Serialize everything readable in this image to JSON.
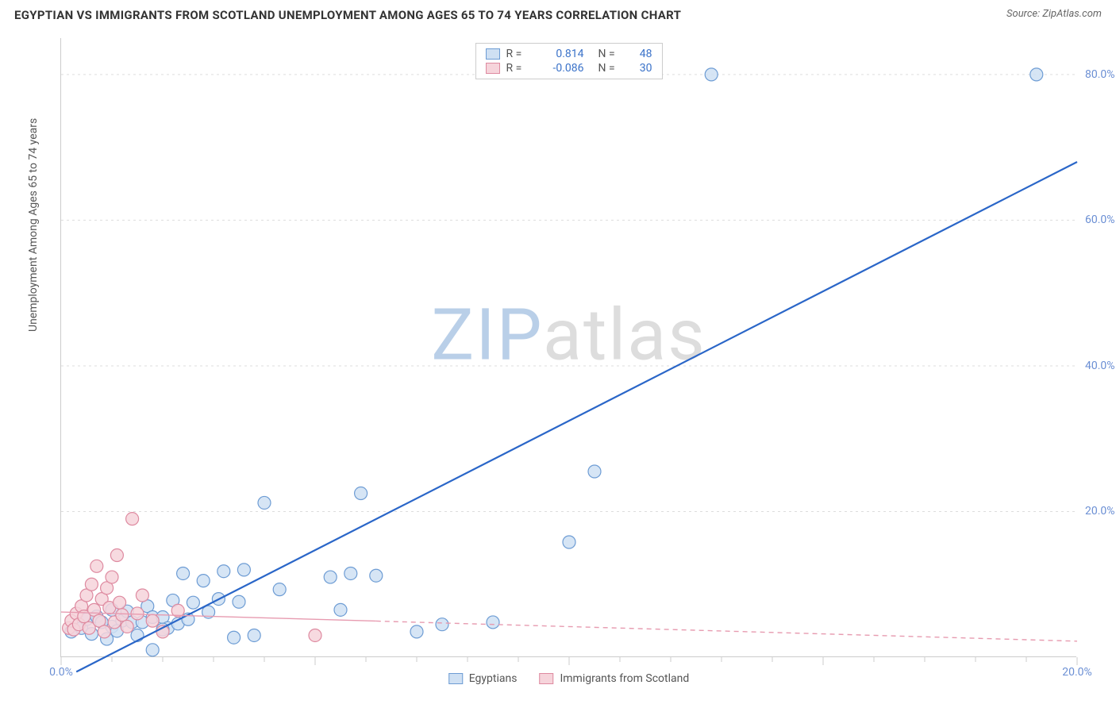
{
  "title": "EGYPTIAN VS IMMIGRANTS FROM SCOTLAND UNEMPLOYMENT AMONG AGES 65 TO 74 YEARS CORRELATION CHART",
  "source": "Source: ZipAtlas.com",
  "watermark_a": "ZIP",
  "watermark_b": "atlas",
  "y_axis_label": "Unemployment Among Ages 65 to 74 years",
  "chart": {
    "type": "scatter",
    "background_color": "#ffffff",
    "grid_color": "#dddddd",
    "axis_color": "#cccccc",
    "xlim": [
      0,
      20
    ],
    "ylim": [
      0,
      85
    ],
    "x_ticks": [
      0,
      5,
      10,
      15,
      20
    ],
    "x_tick_labels": [
      "0.0%",
      "",
      "",
      "",
      "20.0%"
    ],
    "y_ticks": [
      20,
      40,
      60,
      80
    ],
    "y_tick_labels": [
      "20.0%",
      "40.0%",
      "60.0%",
      "80.0%"
    ],
    "x_minor_step": 1,
    "marker_radius": 8,
    "marker_stroke_width": 1.2,
    "series": [
      {
        "name": "Egyptians",
        "color_fill": "#cfe0f3",
        "color_stroke": "#6d9cd4",
        "r_value": "0.814",
        "n_value": "48",
        "trend": {
          "x1": 0.3,
          "y1": -2,
          "x2": 20,
          "y2": 68,
          "dash": "0",
          "width": 2.2,
          "color": "#2a66c8"
        },
        "points": [
          [
            0.2,
            3.5
          ],
          [
            0.4,
            4
          ],
          [
            0.5,
            5.2
          ],
          [
            0.6,
            3.2
          ],
          [
            0.7,
            5.6
          ],
          [
            0.9,
            2.5
          ],
          [
            1.0,
            6.5
          ],
          [
            1.0,
            4.2
          ],
          [
            1.2,
            5.0
          ],
          [
            1.3,
            6.3
          ],
          [
            1.4,
            4.8
          ],
          [
            1.5,
            3.0
          ],
          [
            1.6,
            4.8
          ],
          [
            1.7,
            7.0
          ],
          [
            1.8,
            5.5
          ],
          [
            1.8,
            1.0
          ],
          [
            2.0,
            5.5
          ],
          [
            2.1,
            4.0
          ],
          [
            2.2,
            7.8
          ],
          [
            2.3,
            4.6
          ],
          [
            2.4,
            11.5
          ],
          [
            2.5,
            5.2
          ],
          [
            2.6,
            7.5
          ],
          [
            2.8,
            10.5
          ],
          [
            2.9,
            6.2
          ],
          [
            3.1,
            8.0
          ],
          [
            3.2,
            11.8
          ],
          [
            3.4,
            2.7
          ],
          [
            3.5,
            7.6
          ],
          [
            3.6,
            12.0
          ],
          [
            3.8,
            3.0
          ],
          [
            4.0,
            21.2
          ],
          [
            4.3,
            9.3
          ],
          [
            5.3,
            11.0
          ],
          [
            5.5,
            6.5
          ],
          [
            5.7,
            11.5
          ],
          [
            5.9,
            22.5
          ],
          [
            6.2,
            11.2
          ],
          [
            7.0,
            3.5
          ],
          [
            7.5,
            4.5
          ],
          [
            8.5,
            4.8
          ],
          [
            10.0,
            15.8
          ],
          [
            10.5,
            25.5
          ],
          [
            12.8,
            80.0
          ],
          [
            19.2,
            80.0
          ],
          [
            2.0,
            3.8
          ],
          [
            1.1,
            3.6
          ],
          [
            0.8,
            4.8
          ]
        ]
      },
      {
        "name": "Immigrants from Scotland",
        "color_fill": "#f6d4db",
        "color_stroke": "#de8aa0",
        "r_value": "-0.086",
        "n_value": "30",
        "trend": {
          "x1": 0,
          "y1": 6.2,
          "x2": 20,
          "y2": 2.2,
          "dash": "6 5",
          "width": 1.4,
          "color": "#e79bb0"
        },
        "trend_solid_until_x": 6.2,
        "points": [
          [
            0.15,
            4.0
          ],
          [
            0.2,
            5.0
          ],
          [
            0.25,
            3.8
          ],
          [
            0.3,
            6.0
          ],
          [
            0.35,
            4.5
          ],
          [
            0.4,
            7.0
          ],
          [
            0.45,
            5.6
          ],
          [
            0.5,
            8.5
          ],
          [
            0.55,
            4.0
          ],
          [
            0.6,
            10.0
          ],
          [
            0.65,
            6.5
          ],
          [
            0.7,
            12.5
          ],
          [
            0.75,
            5.0
          ],
          [
            0.8,
            8.0
          ],
          [
            0.85,
            3.5
          ],
          [
            0.9,
            9.5
          ],
          [
            0.95,
            6.8
          ],
          [
            1.0,
            11.0
          ],
          [
            1.05,
            4.8
          ],
          [
            1.1,
            14.0
          ],
          [
            1.15,
            7.5
          ],
          [
            1.2,
            5.8
          ],
          [
            1.3,
            4.2
          ],
          [
            1.4,
            19.0
          ],
          [
            1.5,
            6.0
          ],
          [
            1.6,
            8.5
          ],
          [
            1.8,
            5.0
          ],
          [
            2.0,
            3.5
          ],
          [
            2.3,
            6.4
          ],
          [
            5.0,
            3.0
          ]
        ]
      }
    ],
    "legend_bottom": [
      {
        "label": "Egyptians",
        "fill": "#cfe0f3",
        "stroke": "#6d9cd4"
      },
      {
        "label": "Immigrants from Scotland",
        "fill": "#f6d4db",
        "stroke": "#de8aa0"
      }
    ]
  }
}
